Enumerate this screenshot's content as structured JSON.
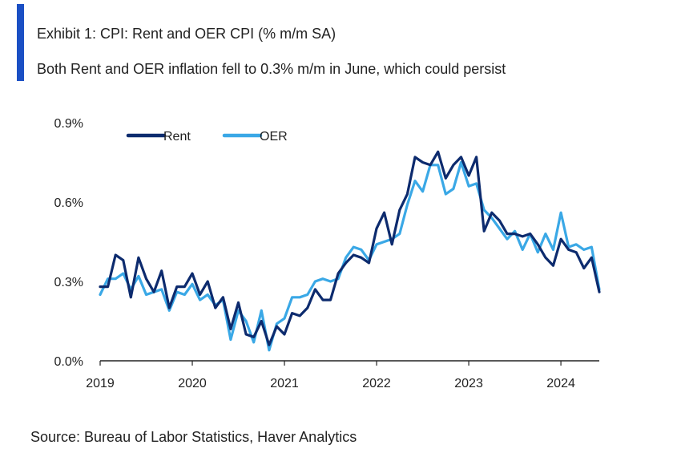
{
  "colors": {
    "accent": "#1a4fc4",
    "rent": "#0d2b6e",
    "oer": "#3aa8e6",
    "axis": "#222222",
    "text": "#222222"
  },
  "exhibit": {
    "title": "Exhibit 1: CPI: Rent and OER CPI (% m/m SA)",
    "subtitle": "Both Rent and OER inflation fell to 0.3% m/m in June, which could persist"
  },
  "footer": {
    "source": "Source: Bureau of Labor Statistics, Haver Analytics"
  },
  "chart_data": {
    "type": "line",
    "title": "",
    "xlabel": "",
    "ylabel": "",
    "ylim": [
      0,
      0.9
    ],
    "xlim": [
      "2019-01",
      "2024-06"
    ],
    "grid": false,
    "legend_position": "top-left",
    "y_ticks": [
      "0.0%",
      "0.3%",
      "0.6%",
      "0.9%"
    ],
    "x_ticks": [
      "2019",
      "2020",
      "2021",
      "2022",
      "2023",
      "2024"
    ],
    "x": [
      "2019-01",
      "2019-02",
      "2019-03",
      "2019-04",
      "2019-05",
      "2019-06",
      "2019-07",
      "2019-08",
      "2019-09",
      "2019-10",
      "2019-11",
      "2019-12",
      "2020-01",
      "2020-02",
      "2020-03",
      "2020-04",
      "2020-05",
      "2020-06",
      "2020-07",
      "2020-08",
      "2020-09",
      "2020-10",
      "2020-11",
      "2020-12",
      "2021-01",
      "2021-02",
      "2021-03",
      "2021-04",
      "2021-05",
      "2021-06",
      "2021-07",
      "2021-08",
      "2021-09",
      "2021-10",
      "2021-11",
      "2021-12",
      "2022-01",
      "2022-02",
      "2022-03",
      "2022-04",
      "2022-05",
      "2022-06",
      "2022-07",
      "2022-08",
      "2022-09",
      "2022-10",
      "2022-11",
      "2022-12",
      "2023-01",
      "2023-02",
      "2023-03",
      "2023-04",
      "2023-05",
      "2023-06",
      "2023-07",
      "2023-08",
      "2023-09",
      "2023-10",
      "2023-11",
      "2023-12",
      "2024-01",
      "2024-02",
      "2024-03",
      "2024-04",
      "2024-05",
      "2024-06"
    ],
    "series": [
      {
        "name": "Rent",
        "color": "#0d2b6e",
        "values": [
          0.28,
          0.28,
          0.4,
          0.38,
          0.24,
          0.39,
          0.31,
          0.26,
          0.34,
          0.2,
          0.28,
          0.28,
          0.33,
          0.25,
          0.3,
          0.2,
          0.24,
          0.12,
          0.22,
          0.1,
          0.09,
          0.15,
          0.06,
          0.13,
          0.1,
          0.18,
          0.17,
          0.2,
          0.27,
          0.23,
          0.23,
          0.33,
          0.37,
          0.4,
          0.39,
          0.37,
          0.5,
          0.56,
          0.44,
          0.57,
          0.63,
          0.77,
          0.75,
          0.74,
          0.79,
          0.69,
          0.74,
          0.77,
          0.7,
          0.77,
          0.49,
          0.56,
          0.53,
          0.48,
          0.48,
          0.47,
          0.48,
          0.44,
          0.39,
          0.36,
          0.46,
          0.42,
          0.41,
          0.35,
          0.39,
          0.26
        ]
      },
      {
        "name": "OER",
        "color": "#3aa8e6",
        "values": [
          0.25,
          0.31,
          0.31,
          0.33,
          0.27,
          0.32,
          0.25,
          0.26,
          0.27,
          0.19,
          0.26,
          0.25,
          0.29,
          0.23,
          0.25,
          0.21,
          0.23,
          0.08,
          0.19,
          0.15,
          0.07,
          0.19,
          0.04,
          0.14,
          0.16,
          0.24,
          0.24,
          0.25,
          0.3,
          0.31,
          0.3,
          0.31,
          0.39,
          0.43,
          0.42,
          0.38,
          0.44,
          0.45,
          0.46,
          0.48,
          0.59,
          0.68,
          0.64,
          0.74,
          0.74,
          0.63,
          0.65,
          0.75,
          0.66,
          0.67,
          0.57,
          0.54,
          0.5,
          0.46,
          0.49,
          0.42,
          0.48,
          0.41,
          0.48,
          0.42,
          0.56,
          0.43,
          0.44,
          0.42,
          0.43,
          0.27
        ]
      }
    ]
  }
}
